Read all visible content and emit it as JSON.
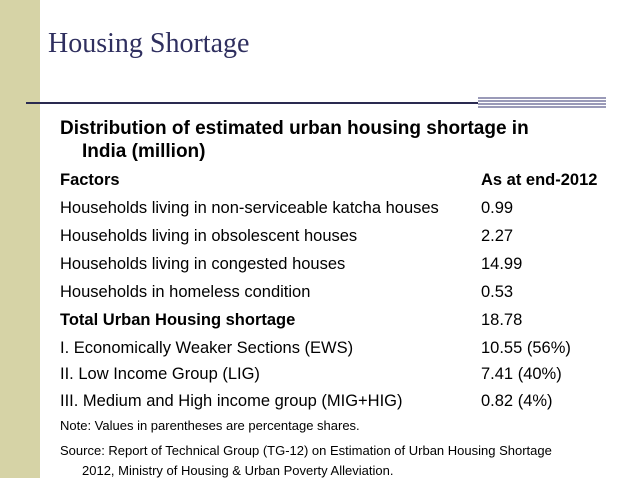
{
  "slide": {
    "title": "Housing Shortage",
    "heading_line1": "Distribution of estimated urban housing shortage in",
    "heading_line2": "India (million)"
  },
  "table": {
    "header": {
      "factor": "Factors",
      "value": "As at end-2012"
    },
    "rows": [
      {
        "factor": "Households living in non-serviceable katcha houses",
        "value": "0.99"
      },
      {
        "factor": "Households living in obsolescent houses",
        "value": "2.27"
      },
      {
        "factor": "Households living in congested houses",
        "value": "14.99"
      },
      {
        "factor": "Households in homeless condition",
        "value": "0.53"
      },
      {
        "factor": "Total Urban Housing shortage",
        "value": "18.78"
      },
      {
        "factor": "I. Economically Weaker Sections (EWS)",
        "value": "10.55 (56%)"
      },
      {
        "factor": "II. Low Income Group (LIG)",
        "value": "7.41 (40%)"
      },
      {
        "factor": "III. Medium and High income group (MIG+HIG)",
        "value": "0.82 (4%)"
      }
    ]
  },
  "footer": {
    "note": "Note: Values in parentheses are percentage shares.",
    "source_line1": "Source: Report of Technical Group (TG-12) on Estimation of Urban Housing Shortage",
    "source_line2": "2012, Ministry of Housing & Urban Poverty Alleviation."
  },
  "colors": {
    "sidebar": "#d6d3a6",
    "title": "#2f2f5f",
    "rule": "#2a2a50",
    "accent": "#9a9ab8"
  }
}
